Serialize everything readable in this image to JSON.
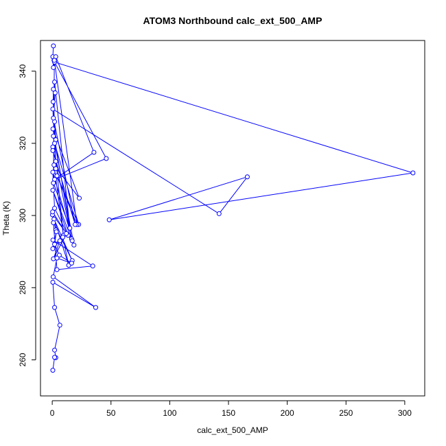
{
  "chart_data": {
    "type": "line",
    "title": "ATOM3 Northbound calc_ext_500_AMP",
    "xlabel": "calc_ext_500_AMP",
    "ylabel": "Theta (K)",
    "xlim": [
      -10,
      317
    ],
    "ylim": [
      250,
      348.5
    ],
    "x_ticks": [
      0,
      50,
      100,
      150,
      200,
      250,
      300
    ],
    "y_ticks": [
      260,
      280,
      300,
      320,
      340
    ],
    "grid": false,
    "series_color": "#0000ff",
    "marker": "open-circle",
    "series": [
      {
        "points": [
          [
            1,
            347
          ],
          [
            0.5,
            344
          ],
          [
            1,
            341
          ],
          [
            1.5,
            343
          ],
          [
            3,
            344
          ],
          [
            35.5,
            317.5
          ],
          [
            2,
            310
          ],
          [
            46,
            315.8
          ],
          [
            2,
            342.5
          ],
          [
            307,
            311.8
          ],
          [
            48.5,
            298.8
          ],
          [
            166,
            310.7
          ],
          [
            142,
            300.5
          ],
          [
            0.5,
            329.5
          ],
          [
            3,
            313
          ],
          [
            1,
            335
          ],
          [
            0.8,
            331.5
          ],
          [
            2,
            326
          ],
          [
            3,
            321
          ],
          [
            0.5,
            319
          ],
          [
            2,
            320
          ],
          [
            22.5,
            297.5
          ],
          [
            4,
            311
          ],
          [
            21,
            297.5
          ],
          [
            1.8,
            343
          ],
          [
            1,
            309
          ],
          [
            15,
            296.5
          ],
          [
            2,
            337
          ],
          [
            2.5,
            334
          ],
          [
            1,
            327
          ],
          [
            19.5,
            297.5
          ],
          [
            0.5,
            318
          ],
          [
            3,
            315
          ],
          [
            16.5,
            293.5
          ],
          [
            0.6,
            324
          ],
          [
            23,
            304.8
          ],
          [
            1.5,
            314
          ],
          [
            9.5,
            294.5
          ],
          [
            1,
            322
          ],
          [
            18.5,
            291.8
          ],
          [
            0.5,
            312
          ],
          [
            2,
            302
          ],
          [
            13.5,
            294.5
          ],
          [
            0.5,
            307
          ],
          [
            17,
            293
          ],
          [
            0.2,
            300.2
          ],
          [
            3,
            296
          ],
          [
            0.3,
            301
          ],
          [
            12,
            295
          ],
          [
            1,
            288
          ],
          [
            6.5,
            293
          ],
          [
            0.5,
            290.8
          ],
          [
            3.5,
            295.5
          ],
          [
            2,
            292
          ],
          [
            9,
            294
          ],
          [
            14,
            286.2
          ],
          [
            1.5,
            299
          ],
          [
            17,
            287.5
          ],
          [
            1,
            298
          ],
          [
            4,
            285
          ],
          [
            34.5,
            286
          ],
          [
            0.6,
            293.2
          ],
          [
            6,
            289
          ],
          [
            16.5,
            286.8
          ],
          [
            4,
            288.2
          ],
          [
            0.8,
            283
          ],
          [
            37,
            274.5
          ],
          [
            0.5,
            281.5
          ],
          [
            2,
            274.5
          ],
          [
            6.5,
            269.6
          ],
          [
            2,
            262.7
          ],
          [
            3,
            260.6
          ],
          [
            2,
            260.7
          ],
          [
            0.5,
            257.1
          ]
        ]
      }
    ]
  }
}
